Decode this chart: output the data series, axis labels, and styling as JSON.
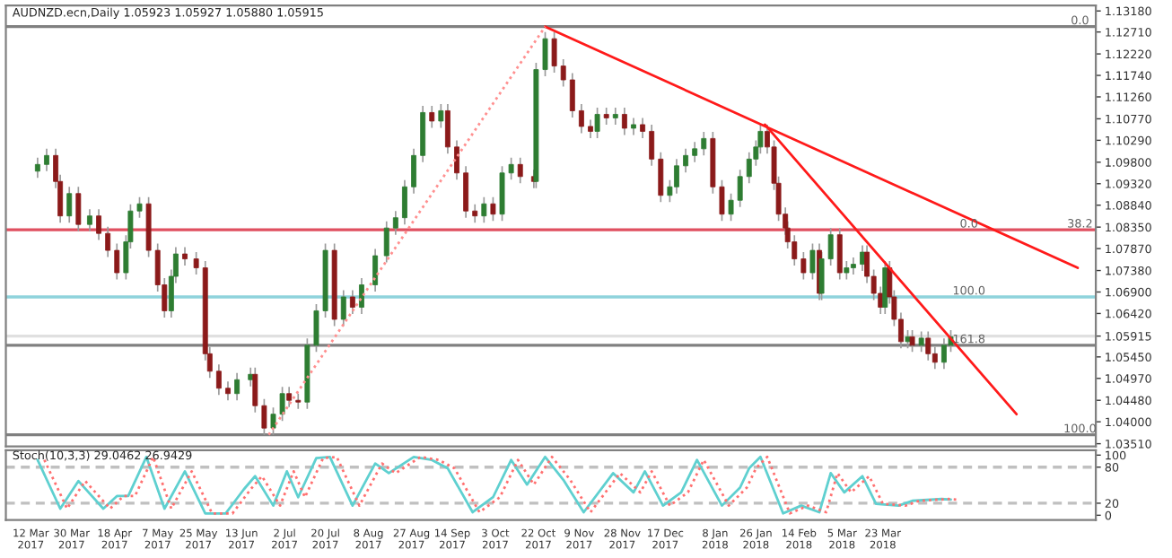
{
  "chart_data": [
    {
      "type": "candlestick",
      "title": "AUDNZD.ecn,Daily 1.05923 1.05927 1.05880 1.05915",
      "x": [
        "2017-03-15",
        "2017-03-19",
        "2017-03-23",
        "2017-03-25",
        "2017-03-29",
        "2017-04-02",
        "2017-04-07",
        "2017-04-11",
        "2017-04-15",
        "2017-04-19",
        "2017-04-23",
        "2017-04-25",
        "2017-04-29",
        "2017-05-03",
        "2017-05-07",
        "2017-05-10",
        "2017-05-13",
        "2017-05-15",
        "2017-05-19",
        "2017-05-24",
        "2017-05-28",
        "2017-05-30",
        "2017-06-03",
        "2017-06-07",
        "2017-06-11",
        "2017-06-17",
        "2017-06-19",
        "2017-06-23",
        "2017-06-27",
        "2017-07-01",
        "2017-07-04",
        "2017-07-08",
        "2017-07-12",
        "2017-07-16",
        "2017-07-20",
        "2017-07-24",
        "2017-07-28",
        "2017-08-01",
        "2017-08-05",
        "2017-08-11",
        "2017-08-16",
        "2017-08-20",
        "2017-08-24",
        "2017-08-28",
        "2017-09-01",
        "2017-09-05",
        "2017-09-09",
        "2017-09-12",
        "2017-09-16",
        "2017-09-20",
        "2017-09-24",
        "2017-09-28",
        "2017-10-02",
        "2017-10-06",
        "2017-10-10",
        "2017-10-14",
        "2017-10-20",
        "2017-10-21",
        "2017-10-25",
        "2017-10-29",
        "2017-11-02",
        "2017-11-06",
        "2017-11-10",
        "2017-11-14",
        "2017-11-17",
        "2017-11-21",
        "2017-11-25",
        "2017-11-29",
        "2017-12-03",
        "2017-12-07",
        "2017-12-11",
        "2017-12-15",
        "2017-12-19",
        "2017-12-22",
        "2017-12-26",
        "2017-12-30",
        "2018-01-03",
        "2018-01-07",
        "2018-01-11",
        "2018-01-15",
        "2018-01-19",
        "2018-01-23",
        "2018-01-26",
        "2018-01-28",
        "2018-01-31",
        "2018-02-03",
        "2018-02-05",
        "2018-02-08",
        "2018-02-09",
        "2018-02-12",
        "2018-02-16",
        "2018-02-20",
        "2018-02-23",
        "2018-02-24",
        "2018-02-28",
        "2018-03-04",
        "2018-03-07",
        "2018-03-10",
        "2018-03-14",
        "2018-03-16",
        "2018-03-19",
        "2018-03-22",
        "2018-03-24",
        "2018-03-26",
        "2018-03-28",
        "2018-03-31",
        "2018-04-03",
        "2018-04-05",
        "2018-04-09",
        "2018-04-12",
        "2018-04-15",
        "2018-04-19",
        "2018-04-22"
      ],
      "ohlc": [
        [
          1.096,
          1.099,
          1.0945,
          1.0975
        ],
        [
          1.0975,
          1.101,
          1.096,
          1.0995
        ],
        [
          1.0995,
          1.101,
          1.0922,
          1.0937
        ],
        [
          1.0937,
          1.0952,
          1.0845,
          1.086
        ],
        [
          1.086,
          1.0925,
          1.0845,
          1.091
        ],
        [
          1.091,
          1.0925,
          1.0826,
          1.0841
        ],
        [
          1.0841,
          1.0875,
          1.0826,
          1.086
        ],
        [
          1.086,
          1.0875,
          1.0806,
          1.0821
        ],
        [
          1.0821,
          1.0836,
          1.0768,
          1.0783
        ],
        [
          1.0783,
          1.0798,
          1.0718,
          1.0733
        ],
        [
          1.0733,
          1.0817,
          1.0718,
          1.0802
        ],
        [
          1.0802,
          1.0886,
          1.0787,
          1.0871
        ],
        [
          1.0871,
          1.0902,
          1.0856,
          1.0887
        ],
        [
          1.0887,
          1.0902,
          1.0768,
          1.0783
        ],
        [
          1.0783,
          1.0798,
          1.0691,
          1.0706
        ],
        [
          1.0706,
          1.0721,
          1.0633,
          1.0648
        ],
        [
          1.0648,
          1.074,
          1.0633,
          1.0725
        ],
        [
          1.0725,
          1.079,
          1.071,
          1.0775
        ],
        [
          1.0775,
          1.079,
          1.0749,
          1.0764
        ],
        [
          1.0764,
          1.0779,
          1.0729,
          1.0744
        ],
        [
          1.0744,
          1.0759,
          1.0537,
          1.0552
        ],
        [
          1.0552,
          1.0567,
          1.0498,
          1.0513
        ],
        [
          1.0513,
          1.0528,
          1.046,
          1.0475
        ],
        [
          1.0475,
          1.049,
          1.0448,
          1.0463
        ],
        [
          1.0463,
          1.0509,
          1.0448,
          1.0494
        ],
        [
          1.0494,
          1.0521,
          1.0479,
          1.0506
        ],
        [
          1.0506,
          1.0521,
          1.0421,
          1.0436
        ],
        [
          1.0436,
          1.0451,
          1.0371,
          1.0386
        ],
        [
          1.0386,
          1.0432,
          1.0371,
          1.0417
        ],
        [
          1.0417,
          1.0478,
          1.0402,
          1.0463
        ],
        [
          1.0463,
          1.0478,
          1.0433,
          1.0448
        ],
        [
          1.0448,
          1.0463,
          1.0429,
          1.0444
        ],
        [
          1.0444,
          1.0586,
          1.0429,
          1.0571
        ],
        [
          1.0571,
          1.0663,
          1.0556,
          1.0648
        ],
        [
          1.0648,
          1.0798,
          1.0633,
          1.0783
        ],
        [
          1.0783,
          1.0798,
          1.0614,
          1.0629
        ],
        [
          1.0629,
          1.0694,
          1.0614,
          1.0679
        ],
        [
          1.0679,
          1.0694,
          1.0641,
          1.0656
        ],
        [
          1.0656,
          1.0721,
          1.0641,
          1.0706
        ],
        [
          1.0706,
          1.0786,
          1.0691,
          1.0771
        ],
        [
          1.0771,
          1.0848,
          1.0756,
          1.0833
        ],
        [
          1.0833,
          1.0871,
          1.0818,
          1.0856
        ],
        [
          1.0856,
          1.094,
          1.0841,
          1.0925
        ],
        [
          1.0925,
          1.101,
          1.091,
          1.0995
        ],
        [
          1.0995,
          1.1106,
          1.098,
          1.1091
        ],
        [
          1.1091,
          1.1106,
          1.1057,
          1.1072
        ],
        [
          1.1072,
          1.111,
          1.1057,
          1.1095
        ],
        [
          1.1095,
          1.111,
          1.0999,
          1.1014
        ],
        [
          1.1014,
          1.1029,
          1.0941,
          1.0956
        ],
        [
          1.0956,
          1.0971,
          1.0856,
          1.0871
        ],
        [
          1.0871,
          1.0886,
          1.0845,
          1.086
        ],
        [
          1.086,
          1.0902,
          1.0845,
          1.0887
        ],
        [
          1.0887,
          1.0902,
          1.0849,
          1.0864
        ],
        [
          1.0864,
          1.0971,
          1.0849,
          1.0956
        ],
        [
          1.0956,
          1.099,
          1.0941,
          1.0975
        ],
        [
          1.0975,
          1.099,
          1.0933,
          1.0948
        ],
        [
          1.0948,
          1.0963,
          1.0922,
          1.0937
        ],
        [
          1.0937,
          1.1202,
          1.0922,
          1.1187
        ],
        [
          1.1187,
          1.1271,
          1.1172,
          1.1256
        ],
        [
          1.1256,
          1.1271,
          1.118,
          1.1195
        ],
        [
          1.1195,
          1.121,
          1.1149,
          1.1164
        ],
        [
          1.1164,
          1.1179,
          1.108,
          1.1095
        ],
        [
          1.1095,
          1.111,
          1.1045,
          1.106
        ],
        [
          1.106,
          1.1075,
          1.1034,
          1.1049
        ],
        [
          1.1049,
          1.1102,
          1.1034,
          1.1087
        ],
        [
          1.1087,
          1.1102,
          1.1064,
          1.1079
        ],
        [
          1.1079,
          1.1102,
          1.1064,
          1.1087
        ],
        [
          1.1087,
          1.1102,
          1.1041,
          1.1056
        ],
        [
          1.1056,
          1.1079,
          1.1041,
          1.1064
        ],
        [
          1.1064,
          1.1079,
          1.1034,
          1.1049
        ],
        [
          1.1049,
          1.1064,
          1.0972,
          1.0987
        ],
        [
          1.0987,
          1.1002,
          1.0891,
          1.0906
        ],
        [
          1.0906,
          1.094,
          1.0891,
          1.0925
        ],
        [
          1.0925,
          1.0987,
          1.091,
          1.0972
        ],
        [
          1.0972,
          1.101,
          1.0957,
          1.0995
        ],
        [
          1.0995,
          1.1025,
          1.098,
          1.101
        ],
        [
          1.101,
          1.1048,
          1.0995,
          1.1033
        ],
        [
          1.1033,
          1.1048,
          1.091,
          1.0925
        ],
        [
          1.0925,
          1.094,
          1.0849,
          1.0864
        ],
        [
          1.0864,
          1.091,
          1.0849,
          1.0895
        ],
        [
          1.0895,
          1.0963,
          1.088,
          1.0948
        ],
        [
          1.0948,
          1.1002,
          1.0933,
          1.0987
        ],
        [
          1.0987,
          1.1029,
          1.0972,
          1.1014
        ],
        [
          1.1014,
          1.1064,
          1.0999,
          1.1049
        ],
        [
          1.1049,
          1.1064,
          1.0999,
          1.1014
        ],
        [
          1.1014,
          1.1029,
          1.0918,
          1.0933
        ],
        [
          1.0933,
          1.0948,
          1.0849,
          1.0864
        ],
        [
          1.0864,
          1.0879,
          1.0818,
          1.0833
        ],
        [
          1.0833,
          1.0848,
          1.0787,
          1.0802
        ],
        [
          1.0802,
          1.0817,
          1.0749,
          1.0764
        ],
        [
          1.0764,
          1.0779,
          1.0718,
          1.0733
        ],
        [
          1.0733,
          1.0798,
          1.0718,
          1.0783
        ],
        [
          1.0783,
          1.0798,
          1.0672,
          1.0687
        ],
        [
          1.0687,
          1.0779,
          1.0672,
          1.0764
        ],
        [
          1.0764,
          1.0833,
          1.0749,
          1.0818
        ],
        [
          1.0818,
          1.0833,
          1.0718,
          1.0733
        ],
        [
          1.0733,
          1.0759,
          1.0718,
          1.0744
        ],
        [
          1.0744,
          1.0767,
          1.0729,
          1.0752
        ],
        [
          1.0752,
          1.0794,
          1.0737,
          1.0779
        ],
        [
          1.0779,
          1.0794,
          1.071,
          1.0725
        ],
        [
          1.0725,
          1.074,
          1.0672,
          1.0687
        ],
        [
          1.0687,
          1.0702,
          1.0641,
          1.0656
        ],
        [
          1.0656,
          1.0759,
          1.0641,
          1.0744
        ],
        [
          1.0744,
          1.0759,
          1.0664,
          1.0679
        ],
        [
          1.0679,
          1.0694,
          1.0614,
          1.0629
        ],
        [
          1.0629,
          1.0644,
          1.0564,
          1.0579
        ],
        [
          1.0579,
          1.0605,
          1.0564,
          1.059
        ],
        [
          1.059,
          1.0605,
          1.0556,
          1.0571
        ],
        [
          1.0571,
          1.0602,
          1.0556,
          1.0587
        ],
        [
          1.0587,
          1.0602,
          1.0537,
          1.0552
        ],
        [
          1.0552,
          1.0567,
          1.0518,
          1.0533
        ],
        [
          1.0533,
          1.0586,
          1.0518,
          1.0571
        ],
        [
          1.0571,
          1.0605,
          1.0556,
          1.059
        ]
      ],
      "series": [
        {
          "type": "line",
          "x": [
            "2017-10-25",
            "2018-06-17"
          ],
          "values": [
            1.1283,
            1.0744
          ],
          "color": "#ff1a1a"
        },
        {
          "type": "line",
          "x": [
            "2018-01-30",
            "2018-05-21"
          ],
          "values": [
            1.1064,
            1.0417
          ],
          "color": "#ff1a1a"
        },
        {
          "type": "line",
          "x": [
            "2017-06-25",
            "2017-10-25"
          ],
          "values": [
            1.0371,
            1.1283
          ],
          "color": "#ff9090",
          "line_style": "dotted"
        }
      ],
      "ref_lines": [
        {
          "axis": "y",
          "value": 1.1283,
          "color": "#808080"
        },
        {
          "axis": "y",
          "value": 1.0829,
          "color": "#e05060"
        },
        {
          "axis": "y",
          "value": 1.0679,
          "color": "#8fd3dc"
        },
        {
          "axis": "y",
          "value": 1.05915,
          "color": "#e0e0e0"
        },
        {
          "axis": "y",
          "value": 1.0571,
          "color": "#808080"
        },
        {
          "axis": "y",
          "value": 1.0371,
          "color": "#808080"
        }
      ],
      "annotations": [
        {
          "text": "0.0",
          "x": "2018-06-18",
          "y": 1.1283
        },
        {
          "text": "38.2",
          "x": "2018-06-18",
          "y": 1.0829
        },
        {
          "text": "0.0",
          "x": "2018-04-30",
          "y": 1.0829
        },
        {
          "text": "100.0",
          "x": "2018-04-30",
          "y": 1.0679
        },
        {
          "text": "161.8",
          "x": "2018-04-30",
          "y": 1.0571
        },
        {
          "text": "100.0",
          "x": "2018-06-18",
          "y": 1.0371
        }
      ],
      "xlim": [
        "2017-03-01",
        "2018-06-25"
      ],
      "ylim": [
        1.0345,
        1.133
      ],
      "yticks": [
        {
          "value": 1.1318,
          "label": "1.13180"
        },
        {
          "value": 1.1271,
          "label": "1.12710"
        },
        {
          "value": 1.1222,
          "label": "1.12220"
        },
        {
          "value": 1.1174,
          "label": "1.11740"
        },
        {
          "value": 1.1126,
          "label": "1.11260"
        },
        {
          "value": 1.1077,
          "label": "1.10770"
        },
        {
          "value": 1.1029,
          "label": "1.10290"
        },
        {
          "value": 1.098,
          "label": "1.09800"
        },
        {
          "value": 1.0932,
          "label": "1.09320"
        },
        {
          "value": 1.0884,
          "label": "1.08840"
        },
        {
          "value": 1.0835,
          "label": "1.08350"
        },
        {
          "value": 1.0787,
          "label": "1.07870"
        },
        {
          "value": 1.0738,
          "label": "1.07380"
        },
        {
          "value": 1.069,
          "label": "1.06900"
        },
        {
          "value": 1.0642,
          "label": "1.06420"
        },
        {
          "value": 1.05915,
          "label": "1.05915"
        },
        {
          "value": 1.0545,
          "label": "1.05450"
        },
        {
          "value": 1.0497,
          "label": "1.04970"
        },
        {
          "value": 1.0448,
          "label": "1.04480"
        },
        {
          "value": 1.04,
          "label": "1.04000"
        },
        {
          "value": 1.0351,
          "label": "1.03510"
        }
      ],
      "tick_labels": "y"
    },
    {
      "type": "line",
      "title": "Stoch(10,3,3) 29.0462 26.9429",
      "series": [
        {
          "x": [
            "2017-03-15",
            "2017-03-25",
            "2017-04-02",
            "2017-04-13",
            "2017-04-19",
            "2017-04-24",
            "2017-05-02",
            "2017-05-10",
            "2017-05-19",
            "2017-05-28",
            "2017-06-06",
            "2017-06-14",
            "2017-06-19",
            "2017-06-27",
            "2017-07-03",
            "2017-07-08",
            "2017-07-16",
            "2017-07-22",
            "2017-08-01",
            "2017-08-11",
            "2017-08-17",
            "2017-08-28",
            "2017-09-05",
            "2017-09-12",
            "2017-09-23",
            "2017-10-02",
            "2017-10-10",
            "2017-10-17",
            "2017-10-25",
            "2017-11-02",
            "2017-11-11",
            "2017-11-24",
            "2017-12-03",
            "2017-12-08",
            "2017-12-16",
            "2017-12-24",
            "2017-12-31",
            "2018-01-11",
            "2018-01-19",
            "2018-01-23",
            "2018-01-28",
            "2018-02-07",
            "2018-02-15",
            "2018-02-23",
            "2018-02-28",
            "2018-03-06",
            "2018-03-14",
            "2018-03-20",
            "2018-03-30",
            "2018-04-05",
            "2018-04-18",
            "2018-04-22"
          ],
          "values": [
            92,
            11,
            57,
            11,
            32,
            32,
            97,
            11,
            73,
            3,
            3,
            43,
            65,
            16,
            73,
            30,
            95,
            97,
            16,
            86,
            70,
            97,
            92,
            78,
            5,
            30,
            92,
            51,
            97,
            59,
            5,
            70,
            38,
            73,
            16,
            38,
            92,
            16,
            46,
            78,
            97,
            3,
            16,
            5,
            70,
            38,
            65,
            19,
            16,
            24,
            27,
            26
          ],
          "color": "#5fd0d0"
        },
        {
          "x": [
            "2017-03-18",
            "2017-03-28",
            "2017-04-05",
            "2017-04-16",
            "2017-04-22",
            "2017-04-27",
            "2017-05-05",
            "2017-05-13",
            "2017-05-22",
            "2017-05-31",
            "2017-06-09",
            "2017-06-17",
            "2017-06-22",
            "2017-06-30",
            "2017-07-06",
            "2017-07-11",
            "2017-07-19",
            "2017-07-25",
            "2017-08-04",
            "2017-08-14",
            "2017-08-20",
            "2017-08-31",
            "2017-09-08",
            "2017-09-15",
            "2017-09-26",
            "2017-10-05",
            "2017-10-13",
            "2017-10-20",
            "2017-10-28",
            "2017-11-05",
            "2017-11-14",
            "2017-11-27",
            "2017-12-06",
            "2017-12-11",
            "2017-12-19",
            "2017-12-27",
            "2018-01-03",
            "2018-01-14",
            "2018-01-22",
            "2018-01-26",
            "2018-01-31",
            "2018-02-10",
            "2018-02-18",
            "2018-02-26",
            "2018-03-03",
            "2018-03-09",
            "2018-03-17",
            "2018-03-23",
            "2018-04-02",
            "2018-04-08",
            "2018-04-21",
            "2018-04-25"
          ],
          "values": [
            92,
            11,
            57,
            11,
            32,
            32,
            97,
            11,
            73,
            3,
            3,
            43,
            65,
            16,
            73,
            30,
            95,
            97,
            16,
            86,
            70,
            97,
            92,
            78,
            5,
            30,
            92,
            51,
            97,
            59,
            5,
            70,
            38,
            73,
            16,
            38,
            92,
            16,
            46,
            78,
            97,
            3,
            16,
            5,
            70,
            38,
            65,
            19,
            16,
            24,
            27,
            26
          ],
          "color": "#ff7070",
          "line_style": "dotted"
        }
      ],
      "ref_lines": [
        {
          "axis": "y",
          "value": 80,
          "color": "#c0c0c0",
          "line_style": "dashed"
        },
        {
          "axis": "y",
          "value": 20,
          "color": "#c0c0c0",
          "line_style": "dashed"
        }
      ],
      "xlim": [
        "2017-03-01",
        "2018-06-25"
      ],
      "ylim": [
        -8,
        108
      ],
      "xticks": [
        {
          "value": "2017-03-12",
          "label": "12 Mar 2017"
        },
        {
          "value": "2017-03-30",
          "label": "30 Mar 2017"
        },
        {
          "value": "2017-04-18",
          "label": "18 Apr 2017"
        },
        {
          "value": "2017-05-07",
          "label": "7 May 2017"
        },
        {
          "value": "2017-05-25",
          "label": "25 May 2017"
        },
        {
          "value": "2017-06-13",
          "label": "13 Jun 2017"
        },
        {
          "value": "2017-07-02",
          "label": "2 Jul 2017"
        },
        {
          "value": "2017-07-20",
          "label": "20 Jul 2017"
        },
        {
          "value": "2017-08-08",
          "label": "8 Aug 2017"
        },
        {
          "value": "2017-08-27",
          "label": "27 Aug 2017"
        },
        {
          "value": "2017-09-14",
          "label": "14 Sep 2017"
        },
        {
          "value": "2017-10-03",
          "label": "3 Oct 2017"
        },
        {
          "value": "2017-10-22",
          "label": "22 Oct 2017"
        },
        {
          "value": "2017-11-09",
          "label": "9 Nov 2017"
        },
        {
          "value": "2017-11-28",
          "label": "28 Nov 2017"
        },
        {
          "value": "2017-12-17",
          "label": "17 Dec 2017"
        },
        {
          "value": "2018-01-08",
          "label": "8 Jan 2018"
        },
        {
          "value": "2018-01-26",
          "label": "26 Jan 2018"
        },
        {
          "value": "2018-02-14",
          "label": "14 Feb 2018"
        },
        {
          "value": "2018-03-05",
          "label": "5 Mar 2018"
        },
        {
          "value": "2018-03-23",
          "label": "23 Mar 2018"
        }
      ],
      "yticks": [
        0,
        20,
        80,
        100
      ]
    }
  ]
}
